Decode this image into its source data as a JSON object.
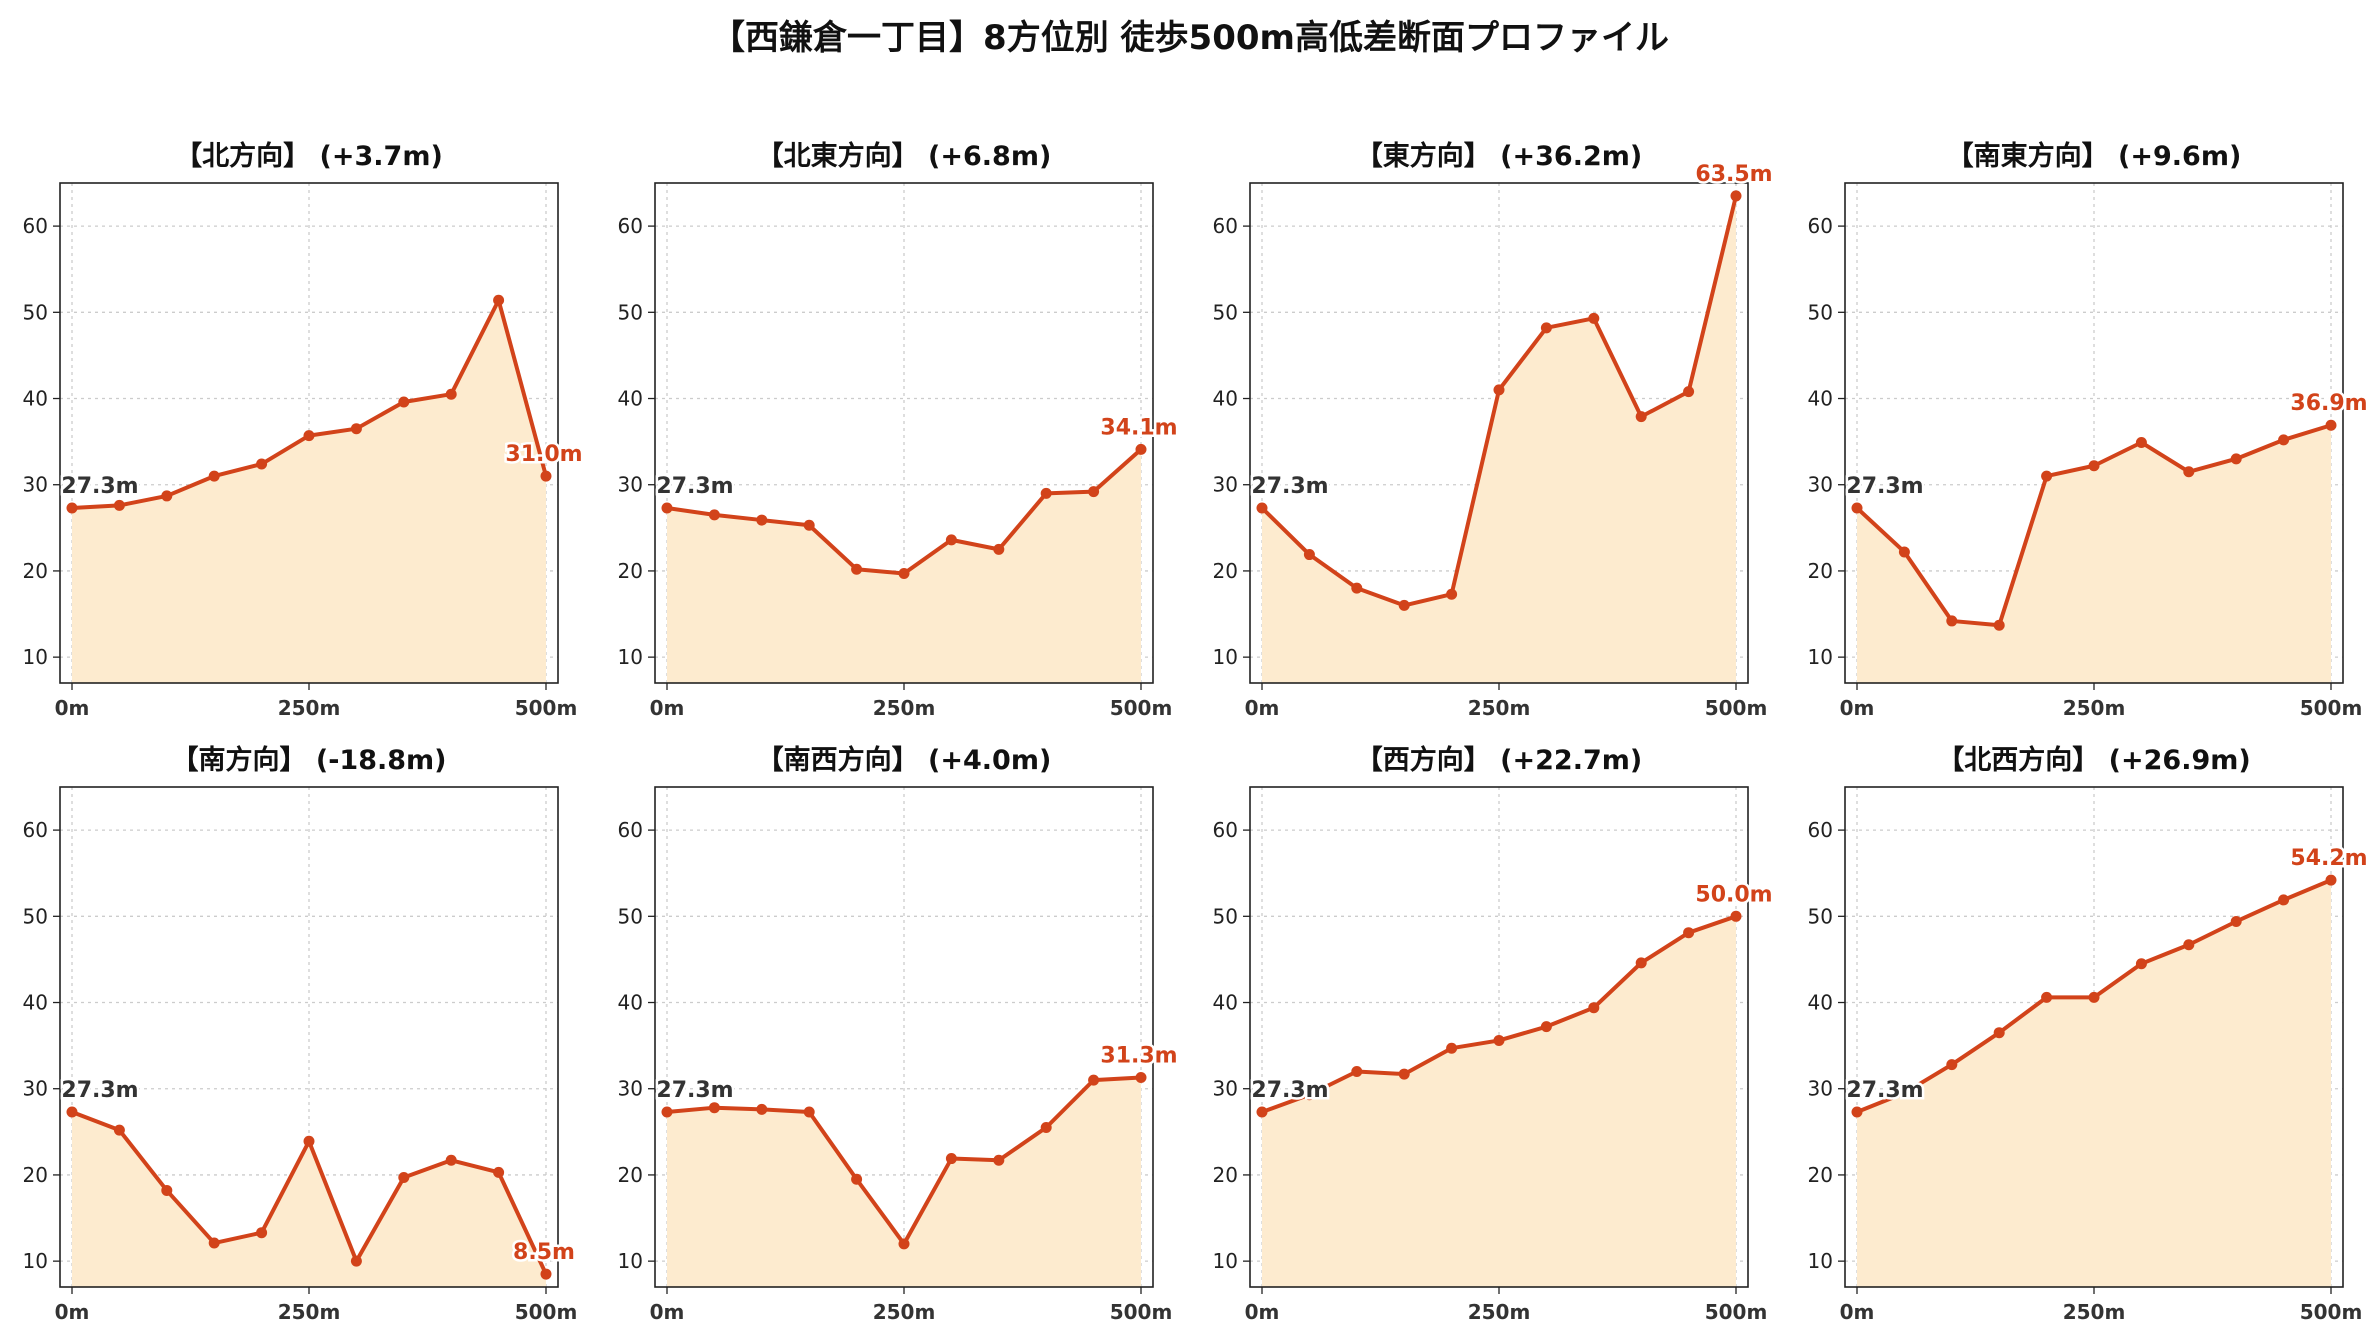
{
  "title": "【西鎌倉一丁目】8方位別 徒歩500m高低差断面プロファイル",
  "colors": {
    "line": "#d2431a",
    "fill": "#fdebcf",
    "grid": "#cccccc",
    "end_label": "#d2431a"
  },
  "chart_data": [
    {
      "type": "area",
      "title": "【北方向】 (+3.7m)",
      "x": [
        0,
        50,
        100,
        150,
        200,
        250,
        300,
        350,
        400,
        450,
        500
      ],
      "values": [
        27.3,
        27.6,
        28.7,
        31.0,
        32.4,
        35.7,
        36.5,
        39.6,
        40.5,
        51.4,
        31.0
      ],
      "xticks": [
        "0m",
        "250m",
        "500m"
      ],
      "yticks": [
        "10",
        "20",
        "30",
        "40",
        "50",
        "60"
      ],
      "ylim": [
        7,
        65
      ],
      "start_label": "27.3m",
      "end_label": "31.0m"
    },
    {
      "type": "area",
      "title": "【北東方向】 (+6.8m)",
      "x": [
        0,
        50,
        100,
        150,
        200,
        250,
        300,
        350,
        400,
        450,
        500
      ],
      "values": [
        27.3,
        26.5,
        25.9,
        25.3,
        20.2,
        19.7,
        23.6,
        22.5,
        29.0,
        29.2,
        34.1
      ],
      "xticks": [
        "0m",
        "250m",
        "500m"
      ],
      "yticks": [
        "10",
        "20",
        "30",
        "40",
        "50",
        "60"
      ],
      "ylim": [
        7,
        65
      ],
      "start_label": "27.3m",
      "end_label": "34.1m"
    },
    {
      "type": "area",
      "title": "【東方向】 (+36.2m)",
      "x": [
        0,
        50,
        100,
        150,
        200,
        250,
        300,
        350,
        400,
        450,
        500
      ],
      "values": [
        27.3,
        21.9,
        18.0,
        16.0,
        17.3,
        41.0,
        48.2,
        49.3,
        37.9,
        40.8,
        63.5
      ],
      "xticks": [
        "0m",
        "250m",
        "500m"
      ],
      "yticks": [
        "10",
        "20",
        "30",
        "40",
        "50",
        "60"
      ],
      "ylim": [
        7,
        65
      ],
      "start_label": "27.3m",
      "end_label": "63.5m"
    },
    {
      "type": "area",
      "title": "【南東方向】 (+9.6m)",
      "x": [
        0,
        50,
        100,
        150,
        200,
        250,
        300,
        350,
        400,
        450,
        500
      ],
      "values": [
        27.3,
        22.2,
        14.2,
        13.7,
        31.0,
        32.2,
        34.9,
        31.5,
        33.0,
        35.2,
        36.9
      ],
      "xticks": [
        "0m",
        "250m",
        "500m"
      ],
      "yticks": [
        "10",
        "20",
        "30",
        "40",
        "50",
        "60"
      ],
      "ylim": [
        7,
        65
      ],
      "start_label": "27.3m",
      "end_label": "36.9m"
    },
    {
      "type": "area",
      "title": "【南方向】 (-18.8m)",
      "x": [
        0,
        50,
        100,
        150,
        200,
        250,
        300,
        350,
        400,
        450,
        500
      ],
      "values": [
        27.3,
        25.2,
        18.2,
        12.1,
        13.3,
        23.9,
        10.0,
        19.7,
        21.7,
        20.3,
        8.5
      ],
      "xticks": [
        "0m",
        "250m",
        "500m"
      ],
      "yticks": [
        "10",
        "20",
        "30",
        "40",
        "50",
        "60"
      ],
      "ylim": [
        7,
        65
      ],
      "start_label": "27.3m",
      "end_label": "8.5m"
    },
    {
      "type": "area",
      "title": "【南西方向】 (+4.0m)",
      "x": [
        0,
        50,
        100,
        150,
        200,
        250,
        300,
        350,
        400,
        450,
        500
      ],
      "values": [
        27.3,
        27.8,
        27.6,
        27.3,
        19.5,
        12.0,
        21.9,
        21.7,
        25.5,
        31.0,
        31.3
      ],
      "xticks": [
        "0m",
        "250m",
        "500m"
      ],
      "yticks": [
        "10",
        "20",
        "30",
        "40",
        "50",
        "60"
      ],
      "ylim": [
        7,
        65
      ],
      "start_label": "27.3m",
      "end_label": "31.3m"
    },
    {
      "type": "area",
      "title": "【西方向】 (+22.7m)",
      "x": [
        0,
        50,
        100,
        150,
        200,
        250,
        300,
        350,
        400,
        450,
        500
      ],
      "values": [
        27.3,
        29.3,
        32.0,
        31.7,
        34.7,
        35.6,
        37.2,
        39.4,
        44.6,
        48.1,
        50.0
      ],
      "xticks": [
        "0m",
        "250m",
        "500m"
      ],
      "yticks": [
        "10",
        "20",
        "30",
        "40",
        "50",
        "60"
      ],
      "ylim": [
        7,
        65
      ],
      "start_label": "27.3m",
      "end_label": "50.0m"
    },
    {
      "type": "area",
      "title": "【北西方向】 (+26.9m)",
      "x": [
        0,
        50,
        100,
        150,
        200,
        250,
        300,
        350,
        400,
        450,
        500
      ],
      "values": [
        27.3,
        29.5,
        32.8,
        36.5,
        40.6,
        40.6,
        44.5,
        46.7,
        49.4,
        51.9,
        54.2
      ],
      "xticks": [
        "0m",
        "250m",
        "500m"
      ],
      "yticks": [
        "10",
        "20",
        "30",
        "40",
        "50",
        "60"
      ],
      "ylim": [
        7,
        65
      ],
      "start_label": "27.3m",
      "end_label": "54.2m"
    }
  ]
}
